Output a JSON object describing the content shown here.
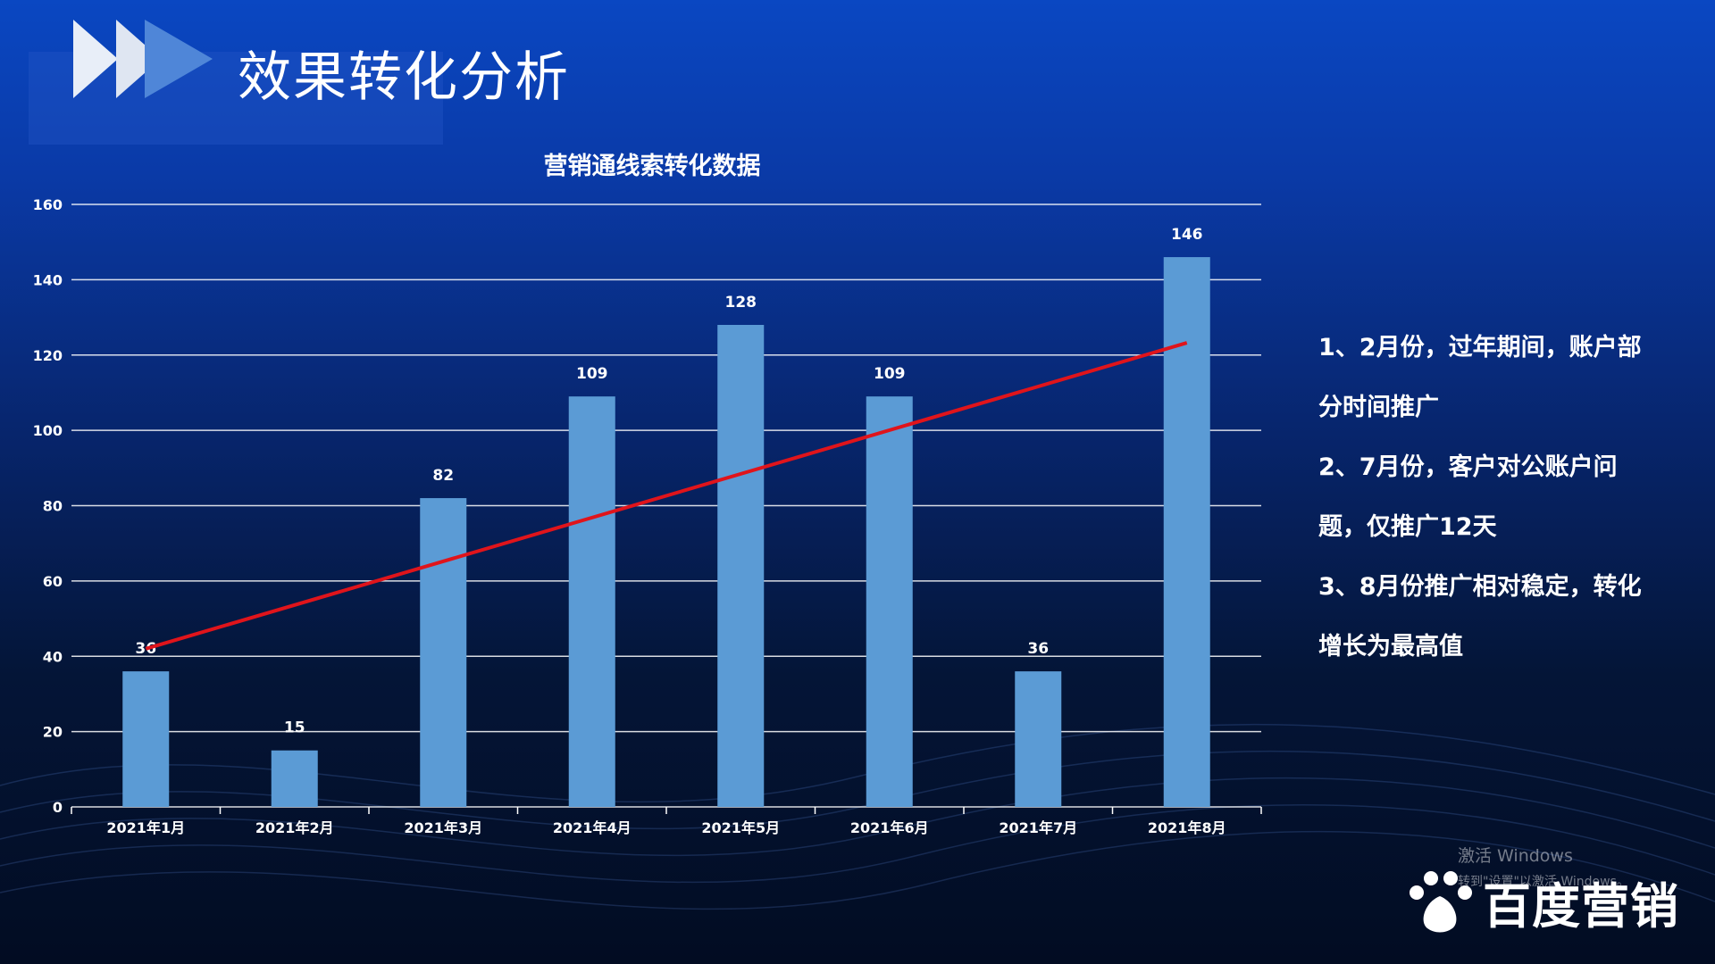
{
  "page": {
    "title": "效果转化分析"
  },
  "chart_data": {
    "type": "bar",
    "title": "营销通线索转化数据",
    "categories": [
      "2021年1月",
      "2021年2月",
      "2021年3月",
      "2021年4月",
      "2021年5月",
      "2021年6月",
      "2021年7月",
      "2021年8月"
    ],
    "values": [
      36,
      15,
      82,
      109,
      128,
      109,
      36,
      146
    ],
    "data_labels": [
      "36",
      "15",
      "82",
      "109",
      "128",
      "109",
      "36",
      "146"
    ],
    "ylim": [
      0,
      160
    ],
    "yticks": [
      "0",
      "20",
      "40",
      "60",
      "80",
      "100",
      "120",
      "140",
      "160"
    ],
    "ytick_values": [
      0,
      20,
      40,
      60,
      80,
      100,
      120,
      140,
      160
    ],
    "grid": true,
    "trendline": {
      "type": "linear",
      "color": "#e0141b"
    },
    "bar_color": "#5b9bd5"
  },
  "notes": [
    "1、2月份，过年期间，账户部分时间推广",
    "2、7月份，客户对公账户问题，仅推广12天",
    "3、8月份推广相对稳定，转化增长为最高值"
  ],
  "watermark": {
    "line1": "激活 Windows",
    "line2": "转到\"设置\"以激活 Windows。"
  },
  "brand": {
    "name": "百度营销",
    "icon": "paw-icon"
  },
  "colors": {
    "accent": "#e0141b",
    "bar": "#5b9bd5",
    "background_top": "#0a47c2",
    "background_bottom": "#020c22"
  }
}
